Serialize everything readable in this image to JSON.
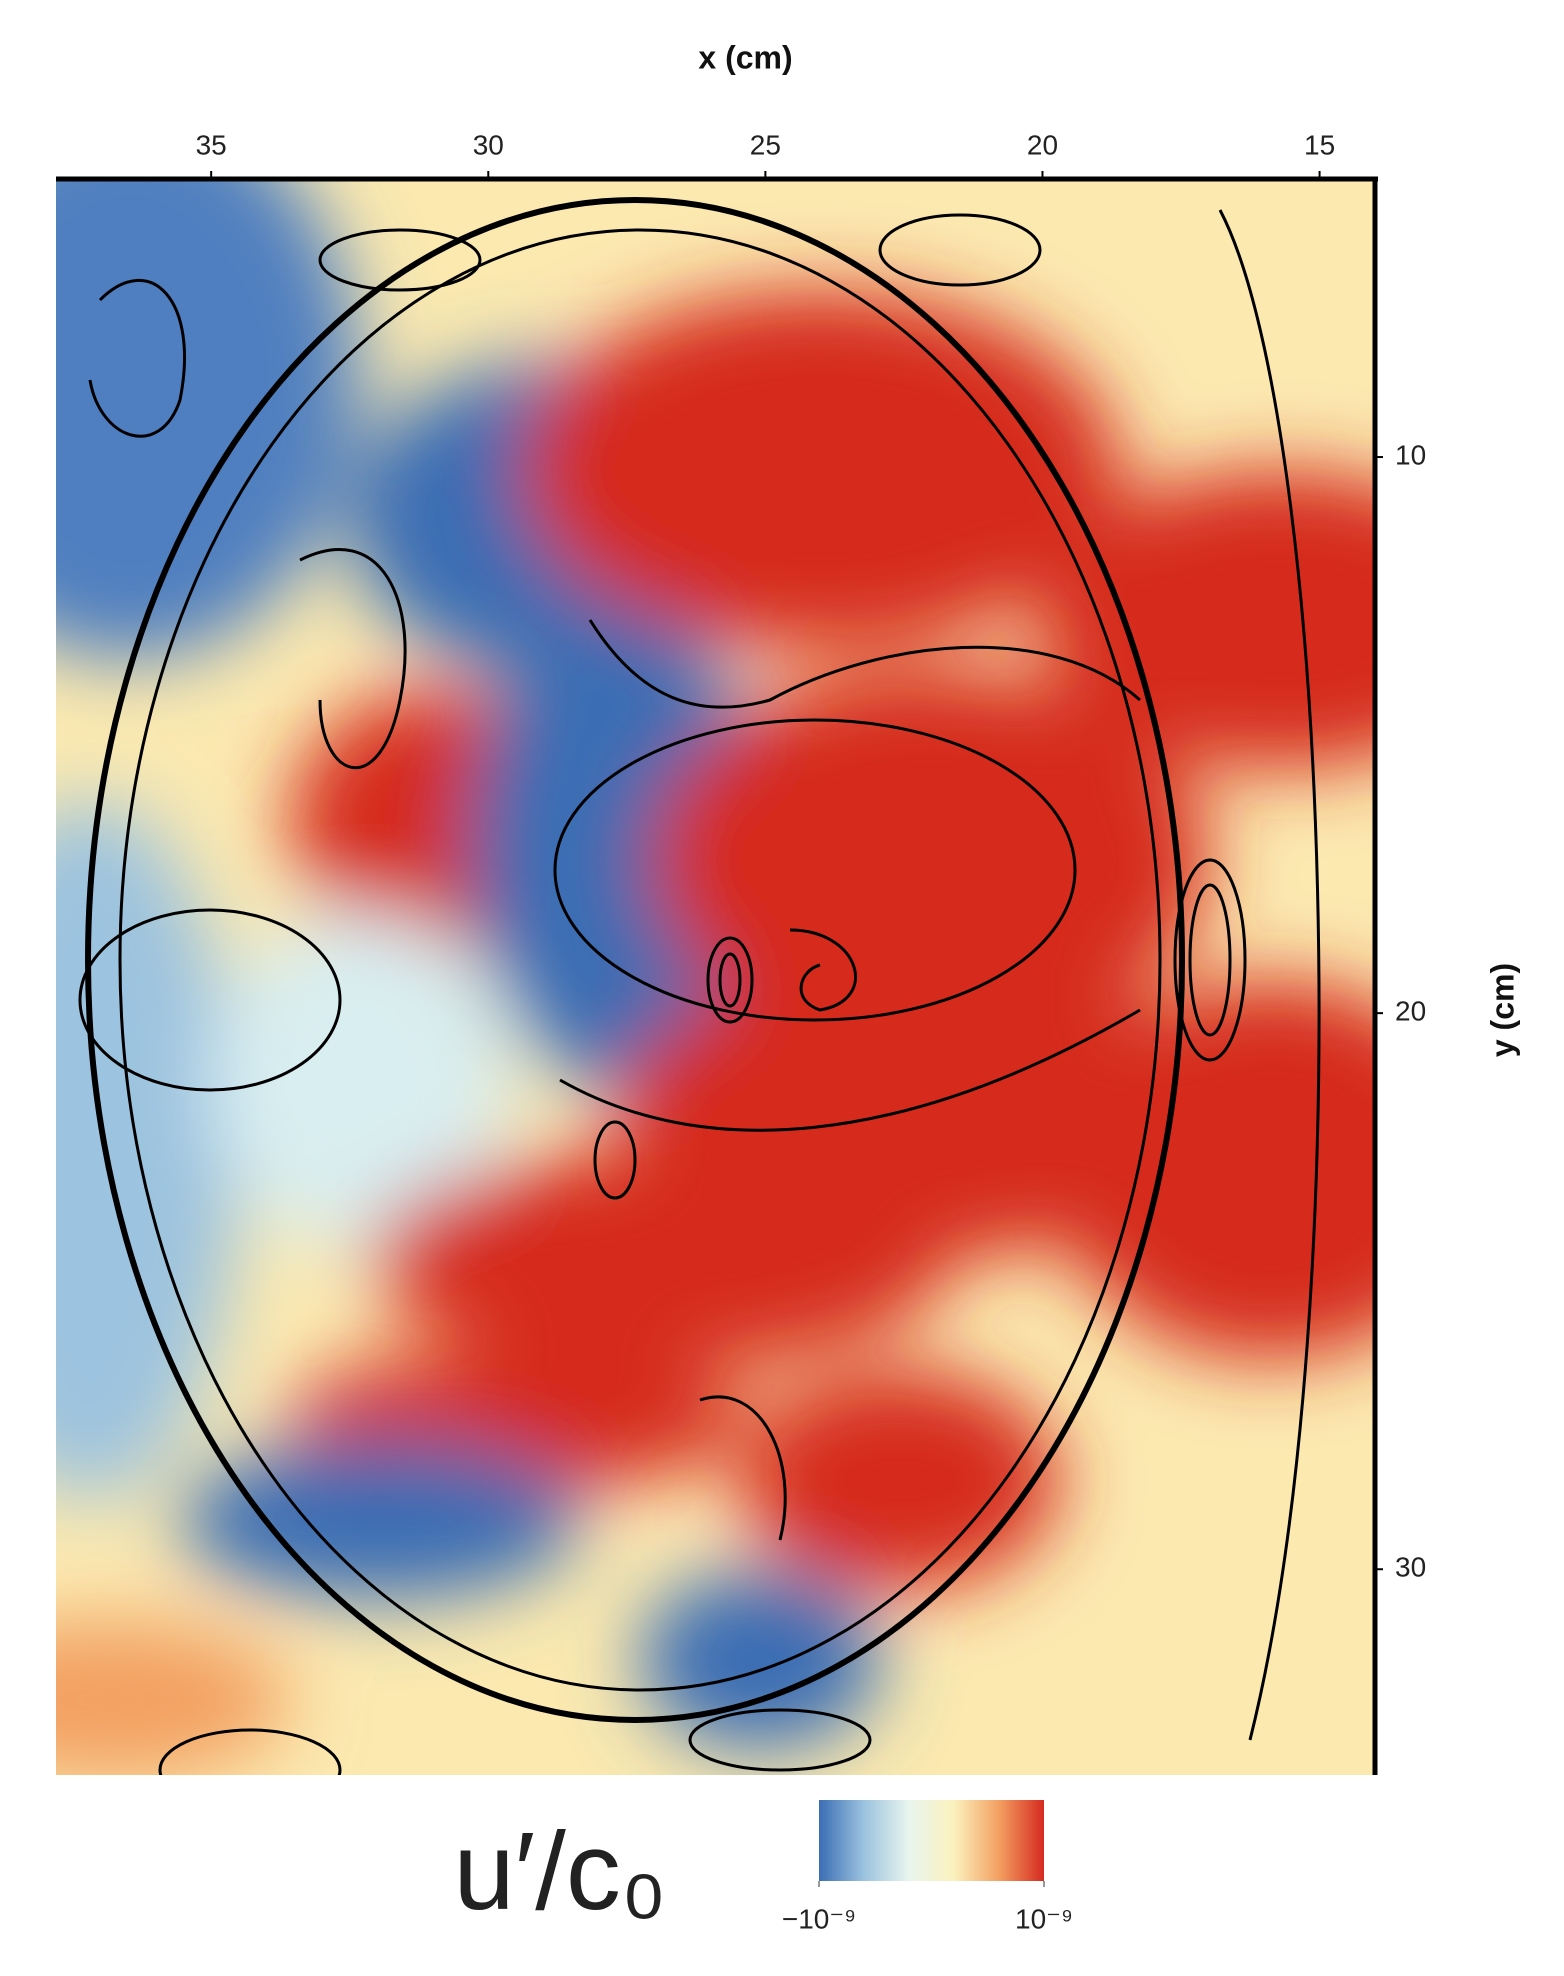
{
  "chart_data": {
    "type": "field",
    "xlabel": "x (cm)",
    "ylabel": "y (cm)",
    "xlim": [
      37.8,
      14.0
    ],
    "xticks": [
      35,
      30,
      25,
      20,
      15
    ],
    "ylim": [
      5.0,
      33.7
    ],
    "yticks": [
      10,
      20,
      30
    ],
    "colorbar": {
      "label": "u′/c₀",
      "lim": [
        -1e-09,
        1e-09
      ],
      "ticks": [
        {
          "value": -1e-09,
          "label": "−10⁻⁹"
        },
        {
          "value": 1e-09,
          "label": "10⁻⁹"
        }
      ],
      "colors": [
        "#3a6db4",
        "#9cc3df",
        "#e9f5ee",
        "#fbf1bd",
        "#f3a062",
        "#d52a1f"
      ]
    }
  }
}
